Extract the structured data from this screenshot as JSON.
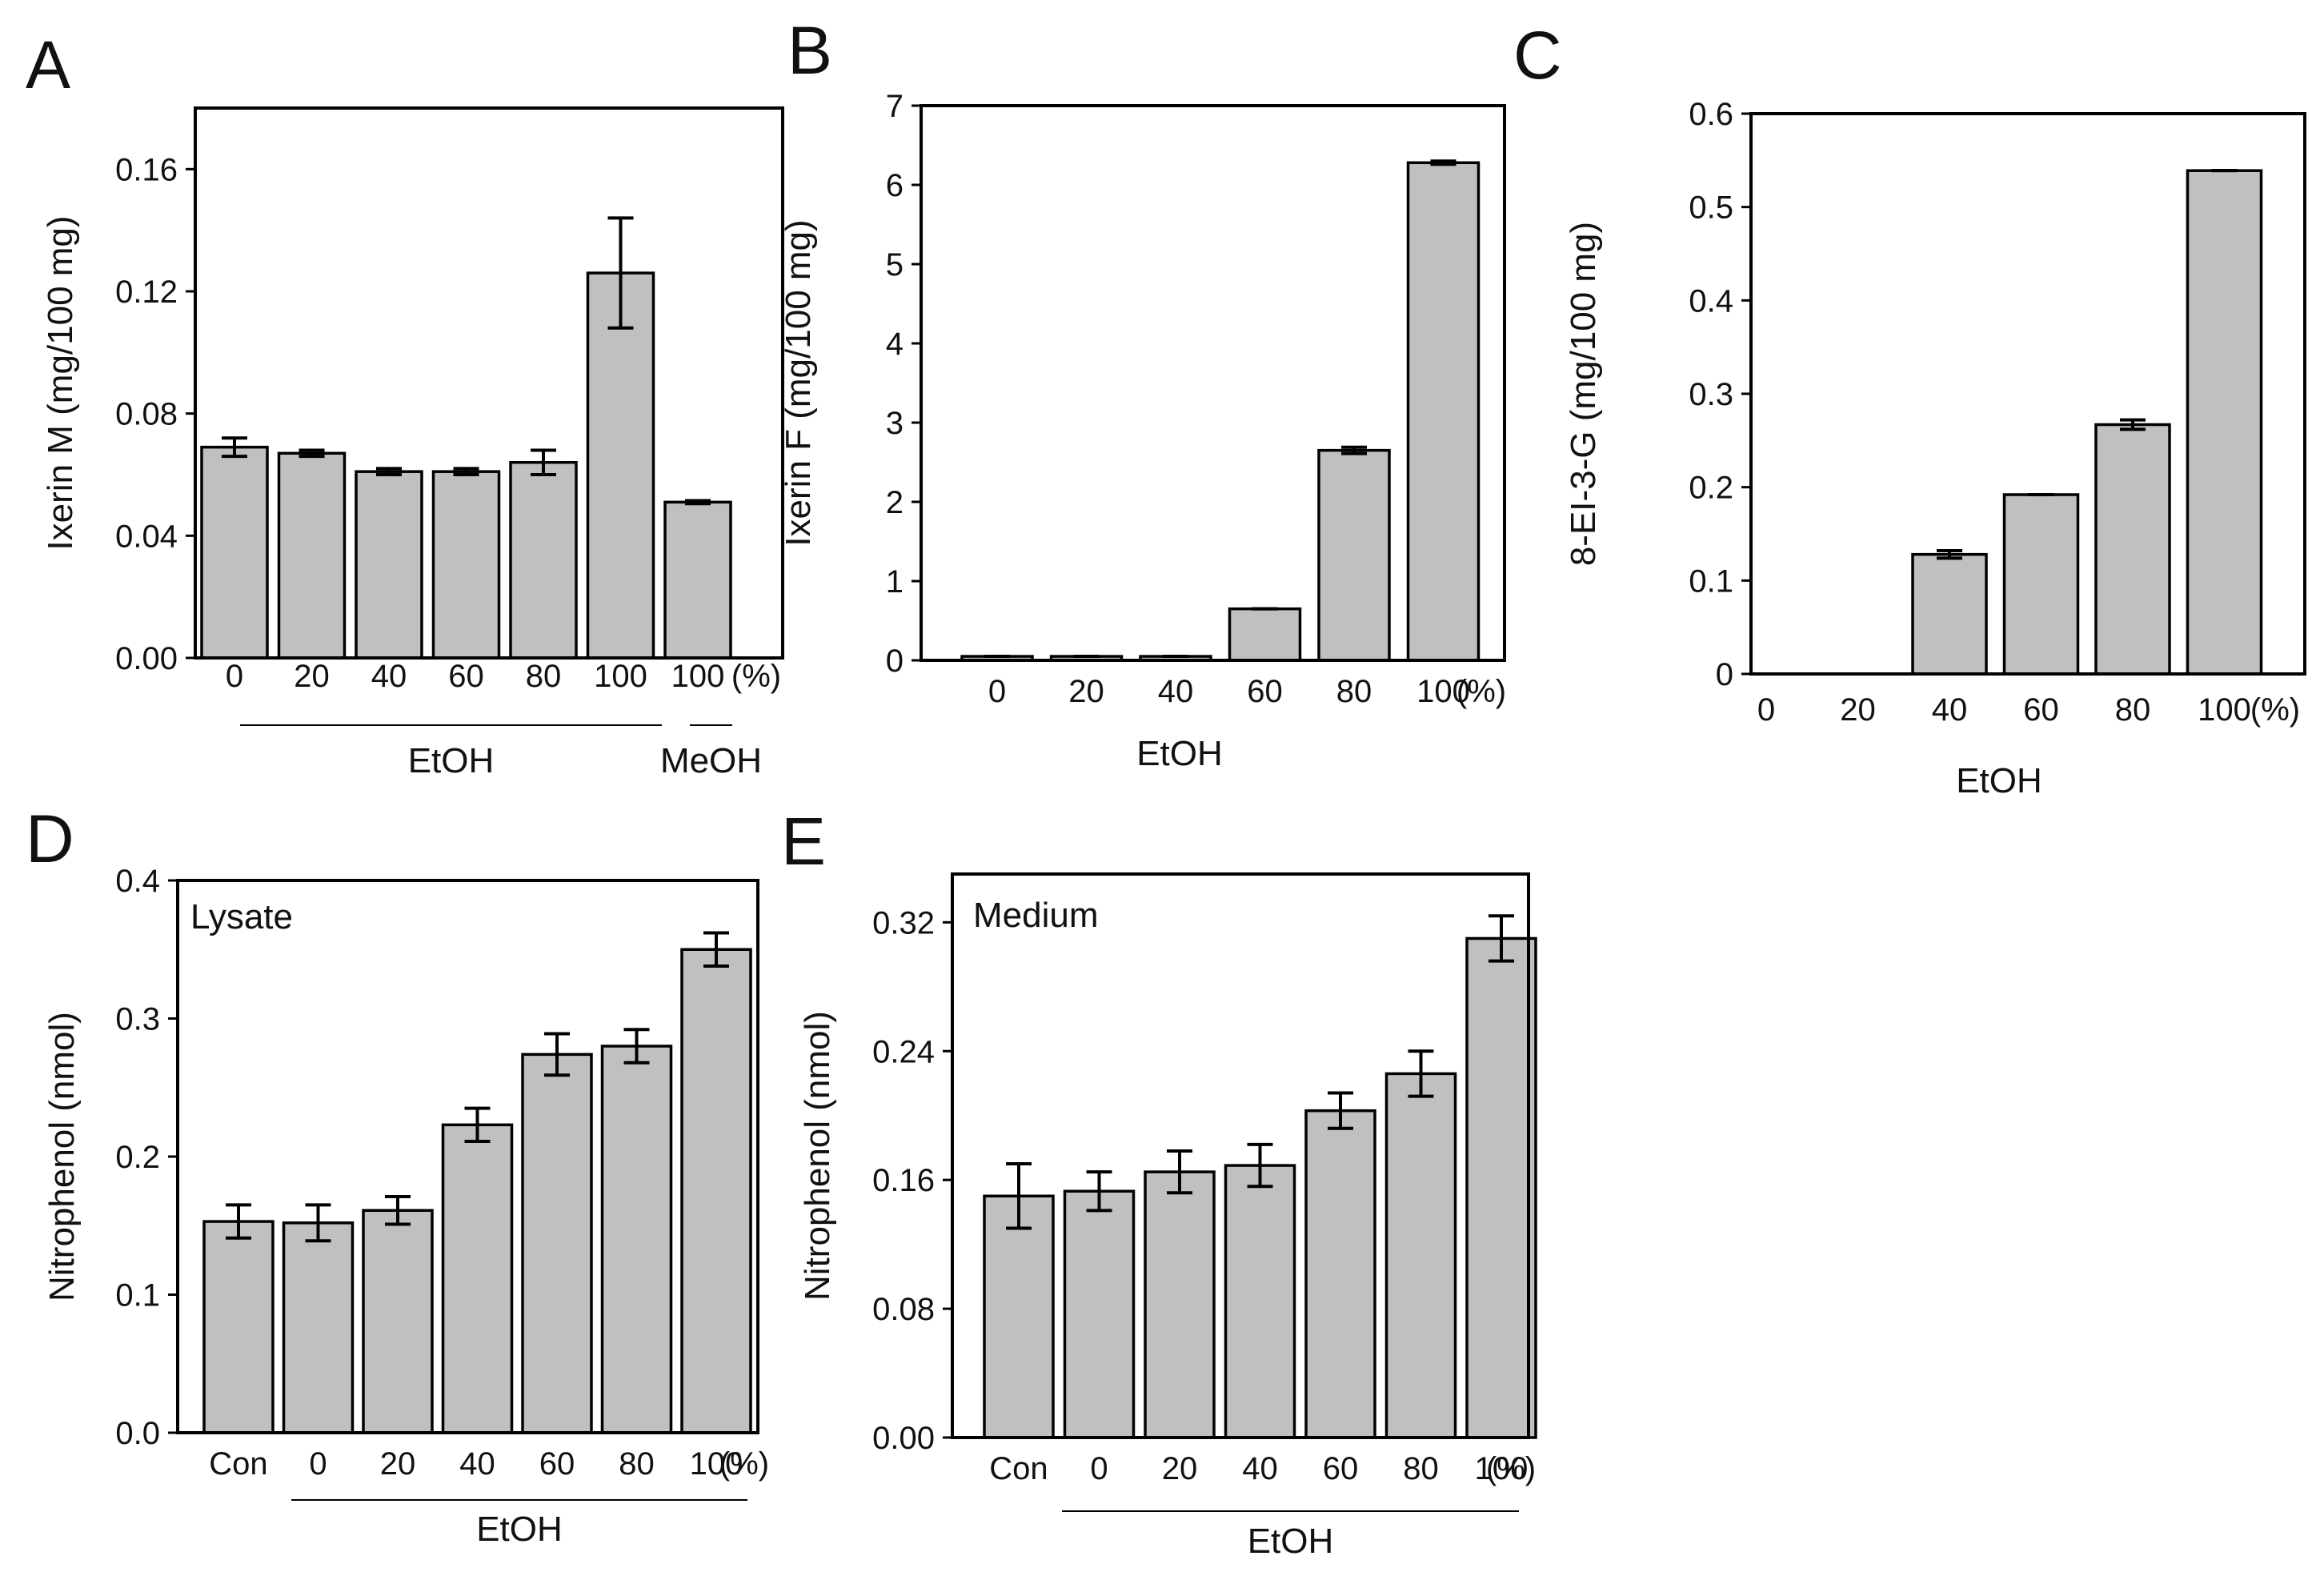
{
  "chart_data": [
    {
      "panel": "A",
      "type": "bar",
      "ylabel": "Ixerin M (mg/100 mg)",
      "ylim": [
        0,
        0.18
      ],
      "yticks": [
        0,
        0.04,
        0.08,
        0.12,
        0.16
      ],
      "ytick_labels": [
        "0.00",
        "0.04",
        "0.08",
        "0.12",
        "0.16"
      ],
      "categories": [
        "0",
        "20",
        "40",
        "60",
        "80",
        "100",
        "100"
      ],
      "unit_label": "(%)",
      "values": [
        0.069,
        0.067,
        0.061,
        0.061,
        0.064,
        0.126,
        0.051
      ],
      "errors": [
        0.003,
        0.001,
        0.001,
        0.001,
        0.004,
        0.018,
        0.0005
      ],
      "groups": [
        {
          "label": "EtOH",
          "from": 0,
          "to": 5
        },
        {
          "label": "MeOH",
          "from": 6,
          "to": 6
        }
      ]
    },
    {
      "panel": "B",
      "type": "bar",
      "ylabel": "Ixerin F (mg/100 mg)",
      "ylim": [
        0,
        7
      ],
      "yticks": [
        0,
        1,
        2,
        3,
        4,
        5,
        6,
        7
      ],
      "ytick_labels": [
        "0",
        "1",
        "2",
        "3",
        "4",
        "5",
        "6",
        "7"
      ],
      "categories": [
        "0",
        "20",
        "40",
        "60",
        "80",
        "100"
      ],
      "unit_label": "(%)",
      "values": [
        0.05,
        0.05,
        0.05,
        0.65,
        2.65,
        6.28
      ],
      "errors": [
        0,
        0,
        0,
        0,
        0.04,
        0.02
      ],
      "groups": [
        {
          "label": "EtOH",
          "from": 0,
          "to": 5,
          "line": false
        }
      ]
    },
    {
      "panel": "C",
      "type": "bar",
      "ylabel": "8-EI-3-G (mg/100 mg)",
      "ylim": [
        0,
        0.6
      ],
      "yticks": [
        0,
        0.1,
        0.2,
        0.3,
        0.4,
        0.5,
        0.6
      ],
      "ytick_labels": [
        "0",
        "0.1",
        "0.2",
        "0.3",
        "0.4",
        "0.5",
        "0.6"
      ],
      "categories": [
        "0",
        "20",
        "40",
        "60",
        "80",
        "100"
      ],
      "unit_label": "(%)",
      "values": [
        0,
        0,
        0.128,
        0.192,
        0.267,
        0.539
      ],
      "errors": [
        0,
        0,
        0.004,
        0,
        0.005,
        0
      ],
      "groups": [
        {
          "label": "EtOH",
          "from": 0,
          "to": 5,
          "line": false
        }
      ]
    },
    {
      "panel": "D",
      "type": "bar",
      "ylabel": "Nitrophenol (nmol)",
      "annotation": "Lysate",
      "ylim": [
        0,
        0.4
      ],
      "yticks": [
        0,
        0.1,
        0.2,
        0.3,
        0.4
      ],
      "ytick_labels": [
        "0.0",
        "0.1",
        "0.2",
        "0.3",
        "0.4"
      ],
      "categories": [
        "Con",
        "0",
        "20",
        "40",
        "60",
        "80",
        "100"
      ],
      "unit_label": "(%)",
      "values": [
        0.153,
        0.152,
        0.161,
        0.223,
        0.274,
        0.28,
        0.35
      ],
      "errors": [
        0.012,
        0.013,
        0.01,
        0.012,
        0.015,
        0.012,
        0.012
      ],
      "groups": [
        {
          "label": "EtOH",
          "from": 1,
          "to": 6
        }
      ]
    },
    {
      "panel": "E",
      "type": "bar",
      "ylabel": "Nitrophenol (nmol)",
      "annotation": "Medium",
      "ylim": [
        0,
        0.35
      ],
      "yticks": [
        0,
        0.08,
        0.16,
        0.24,
        0.32
      ],
      "ytick_labels": [
        "0.00",
        "0.08",
        "0.16",
        "0.24",
        "0.32"
      ],
      "categories": [
        "Con",
        "0",
        "20",
        "40",
        "60",
        "80",
        "100"
      ],
      "unit_label": "(%)",
      "values": [
        0.15,
        0.153,
        0.165,
        0.169,
        0.203,
        0.226,
        0.31
      ],
      "errors": [
        0.02,
        0.012,
        0.013,
        0.013,
        0.011,
        0.014,
        0.014
      ],
      "groups": [
        {
          "label": "EtOH",
          "from": 1,
          "to": 6
        }
      ]
    }
  ]
}
